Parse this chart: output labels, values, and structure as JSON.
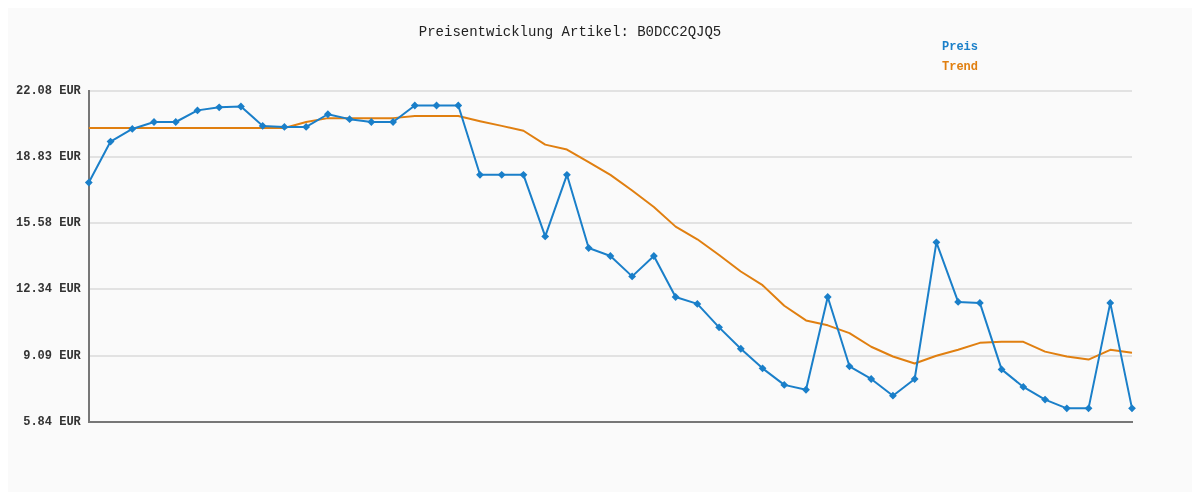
{
  "chart_data": {
    "type": "line",
    "title": "Preisentwicklung Artikel: B0DCC2QJQ5",
    "categories": [
      null,
      null,
      null,
      null,
      null,
      null,
      null,
      null,
      null,
      null,
      null,
      null,
      null,
      null,
      null,
      null,
      null,
      null,
      null,
      null,
      null,
      null,
      null,
      null,
      null,
      null,
      null,
      null,
      null,
      null,
      null,
      null,
      null,
      null,
      null,
      null,
      null,
      null,
      null,
      null,
      null,
      null,
      null,
      null,
      null,
      null,
      null,
      null,
      null
    ],
    "series": [
      {
        "name": "Preis",
        "color": "#1a7fc9",
        "marker": "diamond",
        "values": [
          17.58,
          19.59,
          20.21,
          20.55,
          20.55,
          21.12,
          21.27,
          21.31,
          20.36,
          20.31,
          20.31,
          20.93,
          20.69,
          20.55,
          20.55,
          21.36,
          21.36,
          21.36,
          17.96,
          17.96,
          17.96,
          14.94,
          17.96,
          14.37,
          13.98,
          12.98,
          13.98,
          11.97,
          11.63,
          10.48,
          9.43,
          8.47,
          7.66,
          7.42,
          11.97,
          8.57,
          7.95,
          7.13,
          7.95,
          14.65,
          11.73,
          11.68,
          8.42,
          7.56,
          6.94,
          6.51,
          6.51,
          11.68,
          6.51
        ]
      },
      {
        "name": "Trend",
        "color": "#e07f10",
        "marker": "none",
        "values": [
          20.26,
          20.26,
          20.26,
          20.26,
          20.26,
          20.26,
          20.26,
          20.26,
          20.26,
          20.26,
          20.55,
          20.74,
          20.74,
          20.74,
          20.74,
          20.84,
          20.84,
          20.84,
          20.59,
          20.36,
          20.12,
          19.44,
          19.2,
          18.58,
          17.96,
          17.19,
          16.38,
          15.42,
          14.8,
          14.03,
          13.22,
          12.55,
          11.54,
          10.82,
          10.58,
          10.2,
          9.53,
          9.05,
          8.71,
          9.09,
          9.38,
          9.72,
          9.77,
          9.77,
          9.29,
          9.05,
          8.9,
          9.38,
          9.24
        ]
      }
    ],
    "ylim": [
      5.84,
      22.08
    ],
    "yticks": [
      {
        "value": 5.84,
        "label": "5.84 EUR"
      },
      {
        "value": 9.09,
        "label": "9.09 EUR"
      },
      {
        "value": 12.34,
        "label": "12.34 EUR"
      },
      {
        "value": 15.58,
        "label": "15.58 EUR"
      },
      {
        "value": 18.83,
        "label": "18.83 EUR"
      },
      {
        "value": 22.08,
        "label": "22.08 EUR"
      }
    ],
    "grid": "y",
    "legend": "top right",
    "line_style": "solid"
  }
}
